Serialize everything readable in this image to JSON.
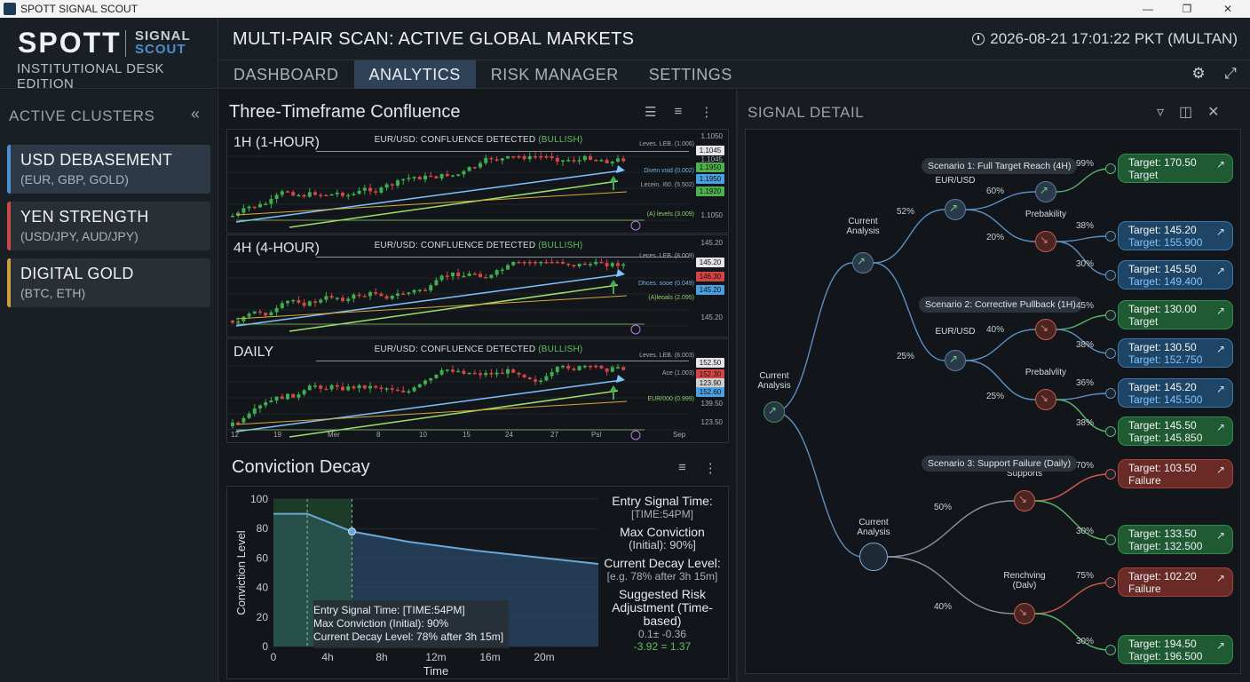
{
  "window": {
    "title": "SPOTT SIGNAL SCOUT"
  },
  "brand": {
    "name": "SPOTT",
    "product_line1": "SIGNAL",
    "product_line2": "SCOUT",
    "edition": "INSTITUTIONAL DESK EDITION"
  },
  "header": {
    "title": "MULTI-PAIR SCAN: ACTIVE GLOBAL MARKETS",
    "datetime": "2026-08-21 17:01:22 PKT (MULTAN)"
  },
  "nav": {
    "tabs": [
      "DASHBOARD",
      "ANALYTICS",
      "RISK MANAGER",
      "SETTINGS"
    ],
    "active": "ANALYTICS"
  },
  "sidebar": {
    "title": "ACTIVE CLUSTERS",
    "clusters": [
      {
        "name": "USD DEBASEMENT",
        "sub": "(EUR, GBP, GOLD)",
        "color": "#4a8fd0"
      },
      {
        "name": "YEN STRENGTH",
        "sub": "(USD/JPY, AUD/JPY)",
        "color": "#c94a45"
      },
      {
        "name": "DIGITAL GOLD",
        "sub": "(BTC, ETH)",
        "color": "#c9a23a"
      }
    ]
  },
  "confluence": {
    "title": "Three-Timeframe Confluence",
    "panels": [
      {
        "label": "1H (1-HOUR)",
        "headline": "EUR/USD: CONFLUENCE DETECTED",
        "signal": "(BULLISH)",
        "levels": [
          "Leves. LEB. (1.006)",
          "Diven void (0.002)",
          "Lecein. I60. (5.502)",
          "(A) levels (3.009)"
        ],
        "prices": [
          "1.1050",
          "1.1045",
          "1.1045",
          "1.1950",
          "1.1950",
          "1.1920",
          "1.1050"
        ]
      },
      {
        "label": "4H (4-HOUR)",
        "headline": "EUR/USD: CONFLUENCE DETECTED",
        "signal": "(BULLISH)",
        "levels": [
          "Leces. LEB. (8.009)",
          "Dhces. sooe (0.049)",
          "(A)leoals (2.095)"
        ],
        "prices": [
          "145.20",
          "145.20",
          "146.30",
          "145.20",
          "145.20"
        ]
      },
      {
        "label": "DAILY",
        "headline": "EUR/USD: CONFLUENCE DETECTED",
        "signal": "(BULLISH)",
        "levels": [
          "Leves. LEB. (8.003)",
          "Ace (1.003)",
          "EUR/000 (0.999)"
        ],
        "prices": [
          "152.50",
          "152.30",
          "123.90",
          "152.60",
          "139.50",
          "123.50"
        ]
      }
    ],
    "x_ticks": [
      "12",
      "19",
      "Mer",
      "8",
      "10",
      "15",
      "24",
      "27",
      "Psl",
      "Sep"
    ]
  },
  "decay": {
    "title": "Conviction Decay",
    "ylabel": "Conviction Level",
    "xlabel": "Time",
    "tooltip": [
      "Entry Signal Time: [TIME:54PM]",
      "Max Conviction (Initial): 90%",
      "Current Decay Level: 78% after 3h 15m]"
    ],
    "info": {
      "entry_k": "Entry Signal Time:",
      "entry_v": "[TIME:54PM]",
      "max_k": "Max Conviction",
      "max_v": "(Initial): 90%]",
      "cur_k": "Current Decay Level:",
      "cur_v": "[e.g. 78% after 3h 15m]",
      "adj_k": "Suggested Risk Adjustment (Time-based)",
      "adj_v1": "0.1± -0.36",
      "adj_v2": "-3.92 = 1.37"
    }
  },
  "chart_data": {
    "type": "area",
    "title": "Conviction Decay",
    "xlabel": "Time",
    "ylabel": "Conviction Level",
    "x_ticks": [
      "0",
      "4h",
      "8h",
      "12m",
      "16m",
      "20m"
    ],
    "y_ticks": [
      0,
      20,
      40,
      60,
      80,
      100
    ],
    "ylim": [
      0,
      100
    ],
    "x": [
      0,
      2.5,
      5.8,
      10,
      15,
      20,
      24
    ],
    "values": [
      90,
      90,
      78,
      71,
      65,
      60,
      56
    ]
  },
  "signal_detail": {
    "title": "SIGNAL DETAIL",
    "nodes": {
      "root": "Current Analysis",
      "ca_top": "Current Analysis",
      "ca_bot": "Current Analysis",
      "eu1": "EUR/USD",
      "eu2": "EUR/USD",
      "prob1": "Prebakility",
      "prob2": "Prebalvlity",
      "supports": "Supports",
      "renchving": "Renchving (Dalv)"
    },
    "scenarios": [
      "Scenario 1: Full Target Reach (4H)",
      "Scenario 2: Corrective Pullback (1H)",
      "Scenario 3: Support Failure (Daily)"
    ],
    "pcts": [
      "52%",
      "60%",
      "20%",
      "99%",
      "38%",
      "30%",
      "25%",
      "40%",
      "25%",
      "45%",
      "38%",
      "36%",
      "38%",
      "50%",
      "40%",
      "70%",
      "30%",
      "75%",
      "30%"
    ],
    "targets": [
      {
        "l1": "Target: 170.50",
        "l2": "Target",
        "type": "g"
      },
      {
        "l1": "Target: 145.20",
        "l2": "Target: 155.900",
        "type": "b"
      },
      {
        "l1": "Target: 145.50",
        "l2": "Target: 149.400",
        "type": "b"
      },
      {
        "l1": "Target: 130.00",
        "l2": "Target",
        "type": "g"
      },
      {
        "l1": "Target: 130.50",
        "l2": "Target: 152.750",
        "type": "b"
      },
      {
        "l1": "Target: 145.20",
        "l2": "Target: 145.500",
        "type": "b"
      },
      {
        "l1": "Target: 145.50",
        "l2": "Target: 145.850",
        "type": "g"
      },
      {
        "l1": "Target: 103.50",
        "l2": "Failure",
        "type": "r"
      },
      {
        "l1": "Target: 133.50",
        "l2": "Target: 132.500",
        "type": "g"
      },
      {
        "l1": "Target: 102.20",
        "l2": "Failure",
        "type": "r"
      },
      {
        "l1": "Target: 194.50",
        "l2": "Target: 196.500",
        "type": "g"
      }
    ]
  }
}
